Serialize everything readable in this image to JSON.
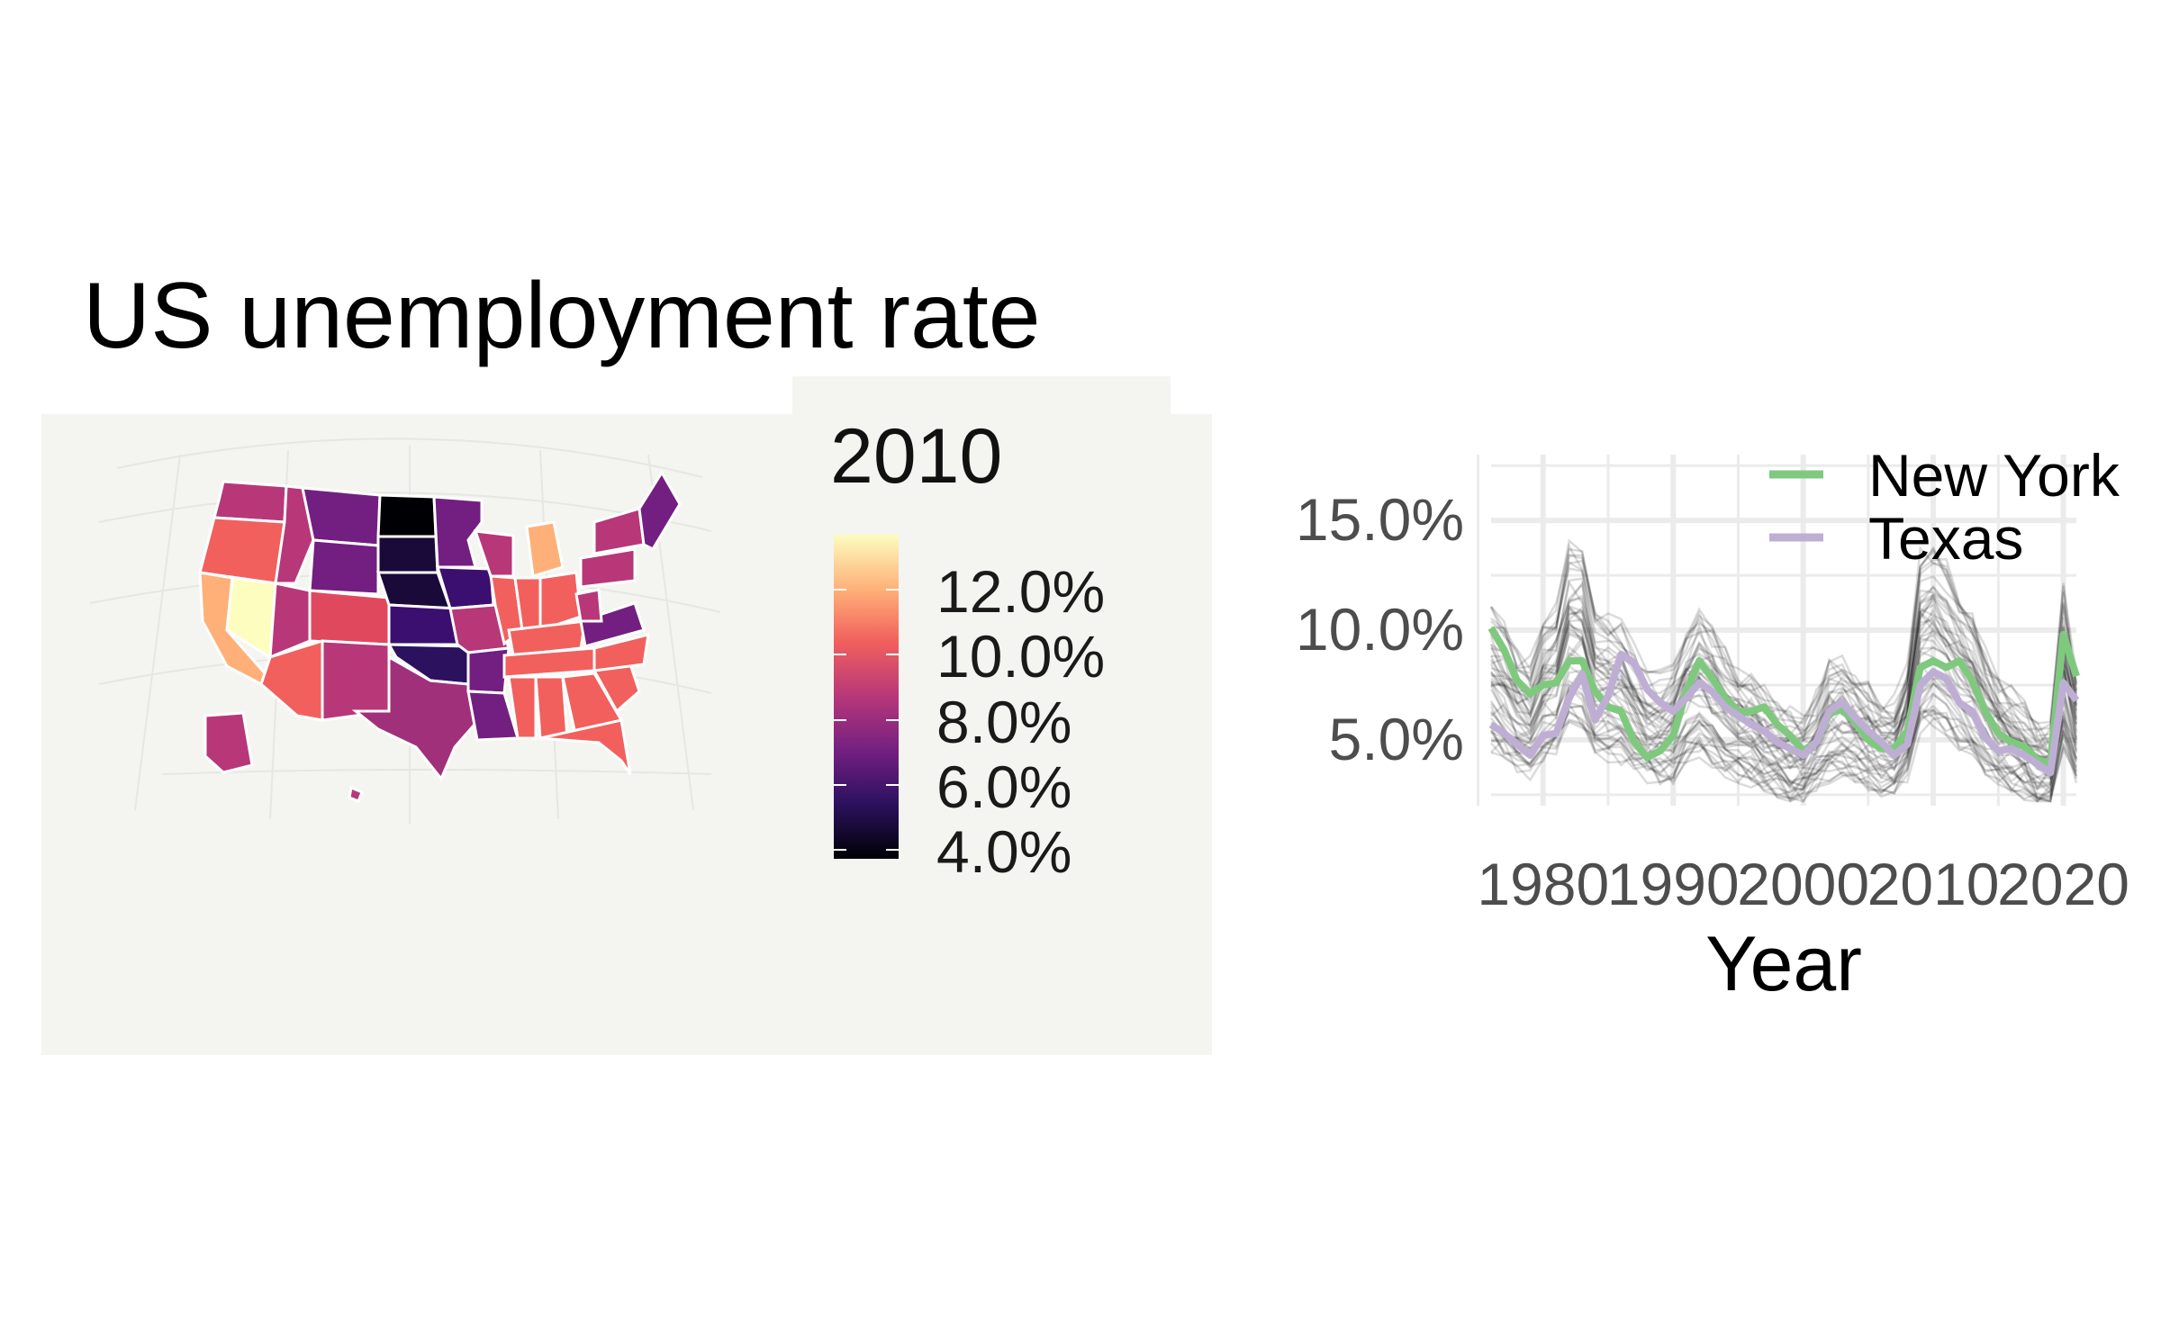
{
  "title": "US unemployment rate",
  "legend": {
    "title": "2010",
    "breaks": [
      "12.0%",
      "10.0%",
      "8.0%",
      "6.0%",
      "4.0%"
    ],
    "colors": [
      "#fcfdbf",
      "#feb078",
      "#f1605d",
      "#b73779",
      "#721f81",
      "#2c115f",
      "#000004"
    ]
  },
  "colors": {
    "new_york": "#7fc97f",
    "texas": "#beaed4",
    "other_states": "#000000",
    "map_background": "#f4f4f0",
    "grid": "#ebebeb"
  },
  "chart_data": [
    {
      "type": "choropleth",
      "title": "US unemployment rate",
      "legend_title": "2010",
      "value_range": [
        3.8,
        13.7
      ],
      "region_count": 51
    },
    {
      "type": "line",
      "xlabel": "Year",
      "ylabel": "",
      "xlim": [
        1976,
        2021
      ],
      "ylim": [
        2.0,
        18.0
      ],
      "x_ticks": [
        "1980",
        "1990",
        "2000",
        "2010",
        "2020"
      ],
      "y_ticks": [
        "5.0%",
        "10.0%",
        "15.0%"
      ],
      "grid": true,
      "legend_position": "top-right",
      "x": [
        1976,
        1977,
        1978,
        1979,
        1980,
        1981,
        1982,
        1983,
        1984,
        1985,
        1986,
        1987,
        1988,
        1989,
        1990,
        1991,
        1992,
        1993,
        1994,
        1995,
        1996,
        1997,
        1998,
        1999,
        2000,
        2001,
        2002,
        2003,
        2004,
        2005,
        2006,
        2007,
        2008,
        2009,
        2010,
        2011,
        2012,
        2013,
        2014,
        2015,
        2016,
        2017,
        2018,
        2019,
        2020,
        2021
      ],
      "series": [
        {
          "name": "New York",
          "values": [
            10.1,
            9.1,
            7.7,
            7.1,
            7.5,
            7.6,
            8.6,
            8.6,
            7.2,
            6.5,
            6.3,
            4.9,
            4.2,
            4.5,
            5.2,
            7.2,
            8.6,
            7.8,
            6.9,
            6.3,
            6.3,
            6.5,
            5.7,
            5.2,
            4.5,
            4.9,
            6.2,
            6.4,
            5.8,
            5.0,
            4.6,
            4.6,
            5.4,
            8.3,
            8.6,
            8.3,
            8.6,
            7.7,
            6.3,
            5.3,
            4.9,
            4.7,
            4.1,
            3.9,
            9.8,
            7.9
          ]
        },
        {
          "name": "Texas",
          "values": [
            5.7,
            5.3,
            4.8,
            4.3,
            5.2,
            5.3,
            6.9,
            8.0,
            5.9,
            7.0,
            8.9,
            8.5,
            7.3,
            6.7,
            6.3,
            6.9,
            7.6,
            7.2,
            6.5,
            6.1,
            5.7,
            5.4,
            4.9,
            4.6,
            4.3,
            4.9,
            6.3,
            6.7,
            6.0,
            5.4,
            4.9,
            4.3,
            4.8,
            7.5,
            8.1,
            7.8,
            6.7,
            6.3,
            5.1,
            4.5,
            4.6,
            4.3,
            3.9,
            3.5,
            7.6,
            6.8
          ]
        }
      ],
      "background_series_count": 49
    }
  ]
}
